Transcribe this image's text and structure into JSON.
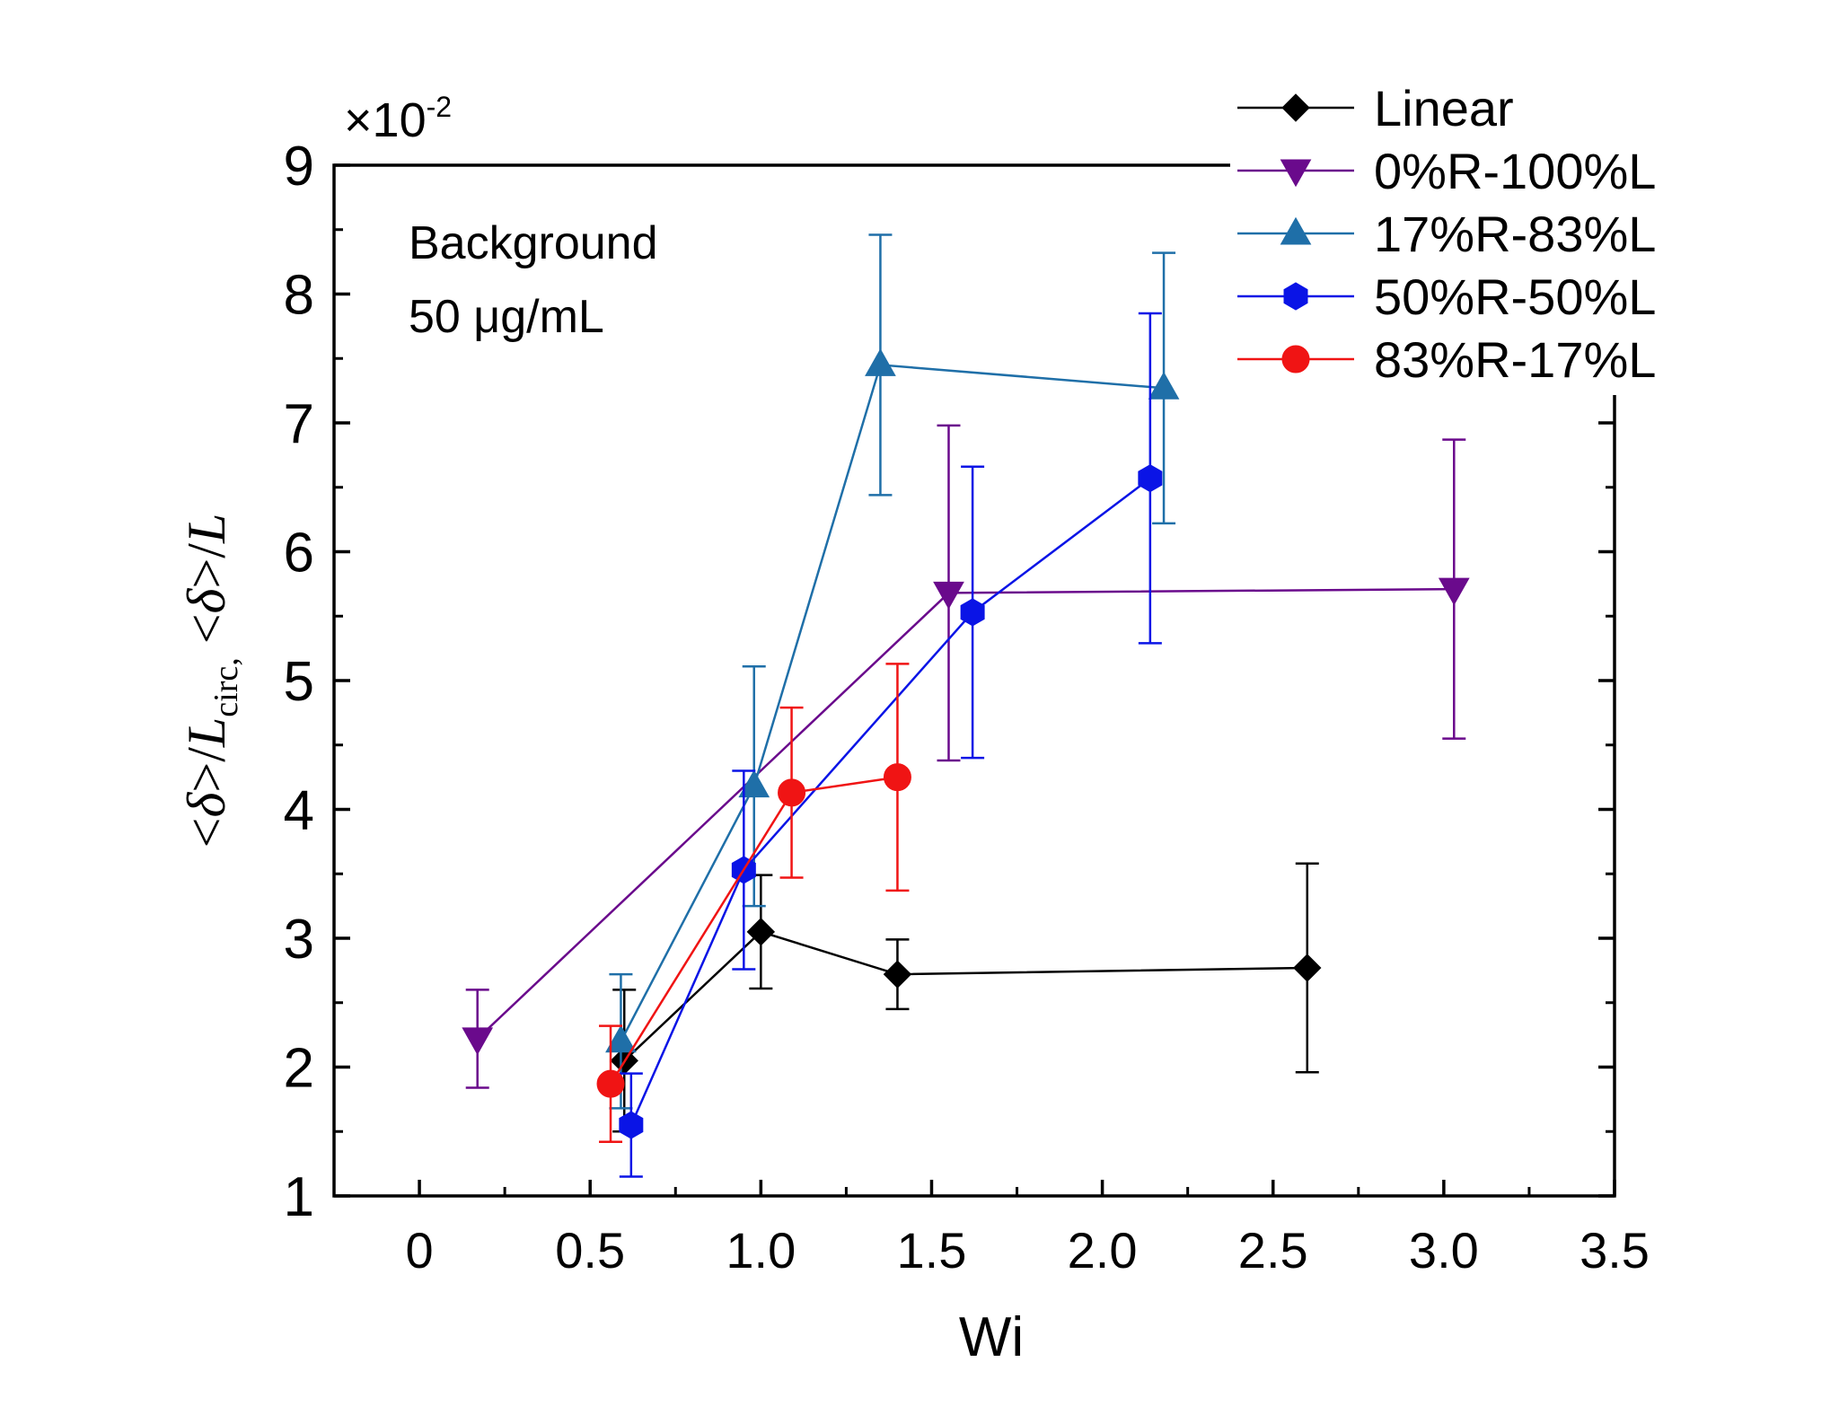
{
  "chart_data": {
    "type": "scatter",
    "xlabel": "Wi",
    "ylabel": {
      "open": "<",
      "symbol": "δ",
      "close": ">/",
      "L": "L",
      "sub": "circ,",
      "space": " ",
      "open2": "<",
      "symbol2": "δ",
      "close2": ">/",
      "L2": "L"
    },
    "y_multiplier": {
      "base": "×10",
      "exponent": "-2"
    },
    "xlim": [
      -0.25,
      3.5
    ],
    "ylim": [
      1,
      9
    ],
    "x_ticks": [
      0,
      0.5,
      1.0,
      1.5,
      2.0,
      2.5,
      3.0,
      3.5
    ],
    "x_tick_labels": [
      "0",
      "0.5",
      "1.0",
      "1.5",
      "2.0",
      "2.5",
      "3.0",
      "3.5"
    ],
    "y_ticks": [
      1,
      2,
      3,
      4,
      5,
      6,
      7,
      8,
      9
    ],
    "y_tick_labels": [
      "1",
      "2",
      "3",
      "4",
      "5",
      "6",
      "7",
      "8",
      "9"
    ],
    "annotation": [
      "Background",
      "50 μg/mL"
    ],
    "legend_position": "top-right",
    "series": [
      {
        "name": "Linear",
        "color": "#000000",
        "marker": "diamond",
        "x": [
          0.6,
          1.0,
          1.4,
          2.6
        ],
        "y": [
          2.05,
          3.05,
          2.72,
          2.77
        ],
        "err": [
          0.55,
          0.44,
          0.27,
          0.81
        ]
      },
      {
        "name": "0%R-100%L",
        "color": "#6a0a8c",
        "marker": "triangle-down",
        "x": [
          0.17,
          1.55,
          3.03
        ],
        "y": [
          2.22,
          5.68,
          5.71
        ],
        "err": [
          0.38,
          1.3,
          1.16
        ]
      },
      {
        "name": "17%R-83%L",
        "color": "#1f6fa8",
        "marker": "triangle-up",
        "x": [
          0.59,
          0.98,
          1.35,
          2.18
        ],
        "y": [
          2.2,
          4.18,
          7.45,
          7.27
        ],
        "err": [
          0.52,
          0.93,
          1.01,
          1.05
        ]
      },
      {
        "name": "50%R-50%L",
        "color": "#0a14e6",
        "marker": "hexagon",
        "x": [
          0.62,
          0.95,
          1.62,
          2.14
        ],
        "y": [
          1.55,
          3.53,
          5.53,
          6.57
        ],
        "err": [
          0.4,
          0.77,
          1.13,
          1.28
        ]
      },
      {
        "name": "83%R-17%L",
        "color": "#f01414",
        "marker": "circle",
        "x": [
          0.56,
          1.09,
          1.4
        ],
        "y": [
          1.87,
          4.13,
          4.25
        ],
        "err": [
          0.45,
          0.66,
          0.88
        ]
      }
    ]
  }
}
